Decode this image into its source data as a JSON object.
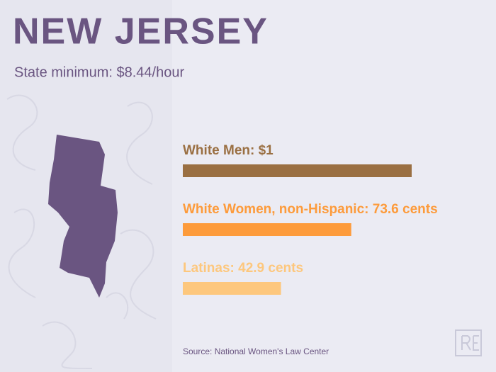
{
  "chart_data": {
    "type": "bar",
    "orientation": "horizontal",
    "title": "NEW JERSEY",
    "subtitle": "State minimum: $8.44/hour",
    "categories": [
      "White Men: $1",
      "White Women, non-Hispanic: 73.6 cents",
      "Latinas: 42.9 cents"
    ],
    "values": [
      100,
      73.6,
      42.9
    ],
    "colors": [
      "#9a6f42",
      "#fd9b3b",
      "#fdc77d"
    ],
    "xlim": [
      0,
      100
    ],
    "source": "Source: National Women's Law Center"
  }
}
